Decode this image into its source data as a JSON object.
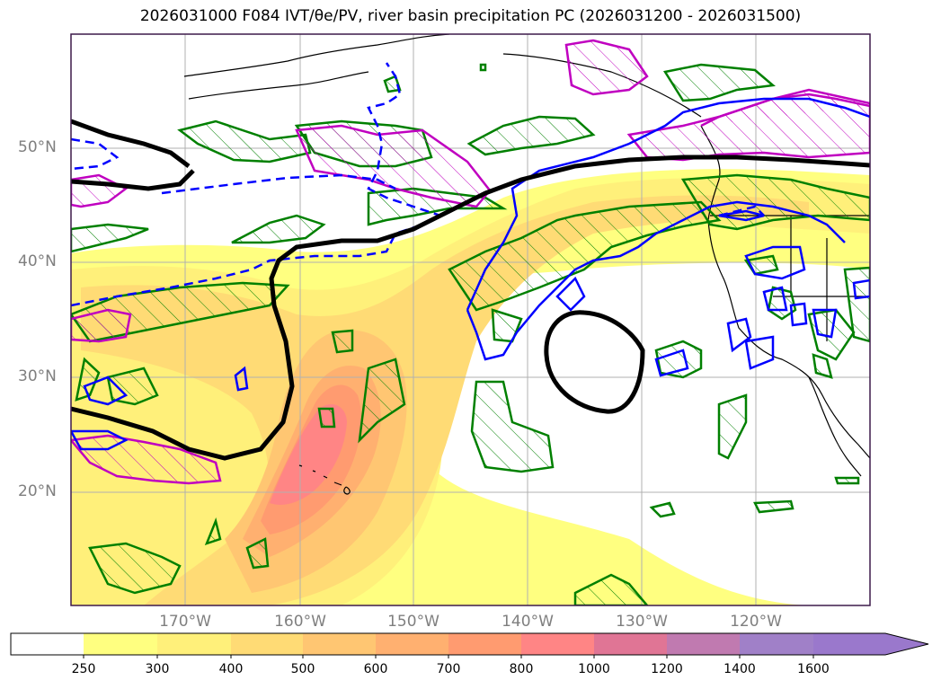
{
  "title": "2026031000 F084 IVT/θe/PV, river basin precipitation PC (2026031200 - 2026031500)",
  "map": {
    "lat_labels": [
      "50°N",
      "40°N",
      "30°N",
      "20°N"
    ],
    "lon_labels": [
      "170°W",
      "160°W",
      "150°W",
      "140°W",
      "130°W",
      "120°W"
    ],
    "colors": {
      "ocean": "#ffffff",
      "frame": "#3d1a4a",
      "grid": "#b0b0b0",
      "coast": "#000000",
      "pv_contour": "#000000",
      "theta_dashed": "#0000ff",
      "blue_contour": "#0000ff",
      "green_contour": "#008000",
      "magenta_contour": "#c000c0"
    }
  },
  "colorbar": {
    "labels": [
      "250",
      "300",
      "400",
      "500",
      "600",
      "700",
      "800",
      "1000",
      "1200",
      "1400",
      "1600"
    ],
    "colors": [
      "#ffffff",
      "#ffff80",
      "#fff07a",
      "#ffdb75",
      "#ffc672",
      "#ffb070",
      "#ff9b70",
      "#ff8585",
      "#e07595",
      "#c07ab0",
      "#a080c8",
      "#9a78cc"
    ],
    "extend": "max"
  }
}
